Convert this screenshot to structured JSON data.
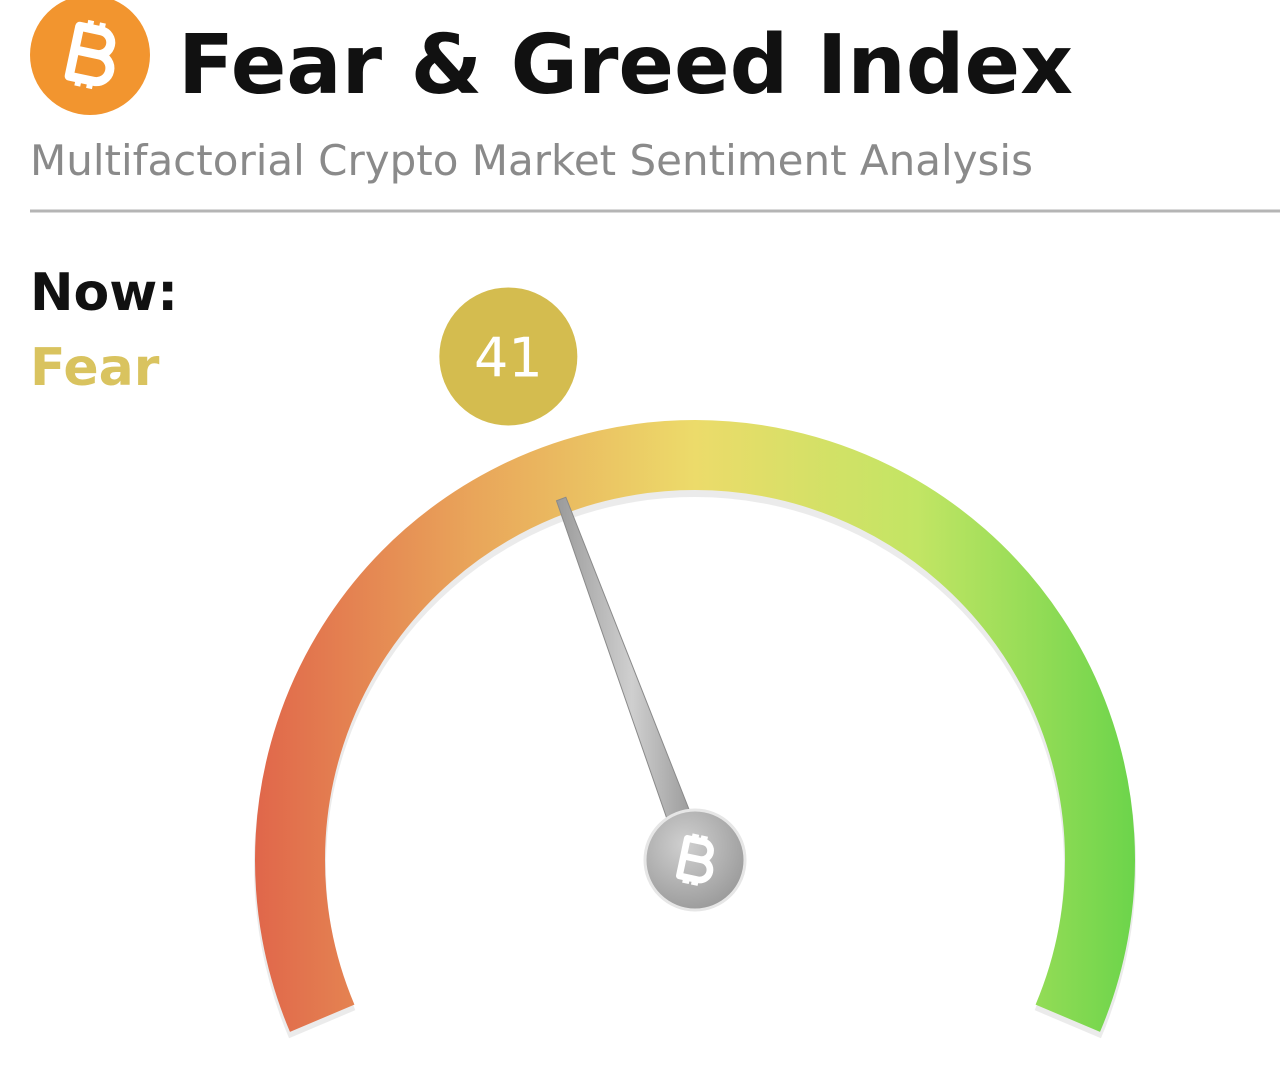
{
  "chart_data": {
    "type": "gauge",
    "title": "Fear & Greed Index",
    "subtitle": "Multifactorial Crypto Market Sentiment Analysis",
    "label": "Now:",
    "classification": "Fear",
    "value": 41,
    "ylim": [
      0,
      100
    ],
    "badge_color": "#d4bc4f",
    "classification_color": "#d9c35f",
    "gauge_colors": [
      "#e0654a",
      "#e9a55a",
      "#ecdb6a",
      "#c2e564",
      "#6ad44a"
    ]
  }
}
